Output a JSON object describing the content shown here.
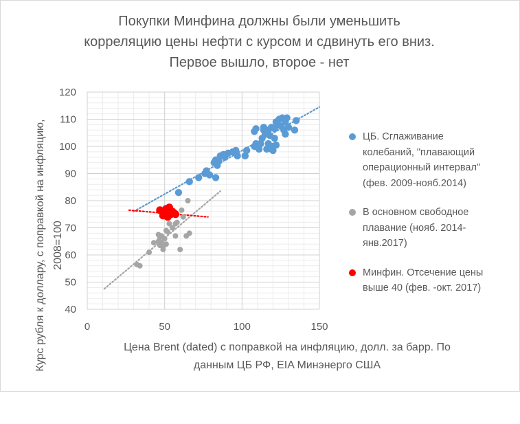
{
  "chart_data": {
    "type": "scatter",
    "title_lines": [
      "Покупки Минфина должны были уменьшить",
      "корреляцию цены нефти с курсом и сдвинуть его вниз.",
      "Первое вышло, второе - нет"
    ],
    "xlabel_lines": [
      "Цена Brent (dated) с поправкой на инфляцию, долл. за барр. По",
      "данным ЦБ РФ, EIA Минэнерго США"
    ],
    "ylabel_lines": [
      "Курс рубля к доллару, с поправкой на инфляцию,",
      "2008=100"
    ],
    "xlim": [
      0,
      150
    ],
    "ylim": [
      40,
      120
    ],
    "x_ticks": [
      "0",
      "50",
      "100",
      "150"
    ],
    "y_ticks": [
      "40",
      "50",
      "60",
      "70",
      "80",
      "90",
      "100",
      "110",
      "120"
    ],
    "grid": true,
    "legend_position": "right",
    "series": [
      {
        "name": "ЦБ. Сглаживание колебаний, \"плавающий операционный интервал\" (фев. 2009-нояб.2014)",
        "legend_lines": [
          "ЦБ. Сглаживание",
          "колебаний, \"плавающий",
          "операционный интервал\"",
          "(фев. 2009-нояб.2014)"
        ],
        "color": "#5b9bd5",
        "trendline": {
          "x": [
            30,
            150
          ],
          "y": [
            76,
            114.5
          ]
        },
        "points": [
          [
            59,
            83
          ],
          [
            66,
            87
          ],
          [
            72,
            88.5
          ],
          [
            76,
            90
          ],
          [
            77,
            91
          ],
          [
            79,
            89.5
          ],
          [
            83,
            88.5
          ],
          [
            82,
            94
          ],
          [
            83,
            95
          ],
          [
            84,
            93
          ],
          [
            85,
            94.5
          ],
          [
            86,
            96.5
          ],
          [
            88,
            97
          ],
          [
            89,
            96
          ],
          [
            91,
            97.5
          ],
          [
            94,
            98
          ],
          [
            96,
            98.5
          ],
          [
            97,
            96.5
          ],
          [
            102,
            96.5
          ],
          [
            103,
            98.5
          ],
          [
            108,
            100
          ],
          [
            109,
            101
          ],
          [
            108,
            105.5
          ],
          [
            109,
            106.5
          ],
          [
            111,
            99
          ],
          [
            112,
            101
          ],
          [
            113,
            103
          ],
          [
            114,
            106
          ],
          [
            114,
            107
          ],
          [
            115,
            104.5
          ],
          [
            116,
            99
          ],
          [
            117,
            101
          ],
          [
            117,
            106
          ],
          [
            118,
            104
          ],
          [
            119,
            107
          ],
          [
            119,
            99
          ],
          [
            120,
            100
          ],
          [
            120,
            98.5
          ],
          [
            121,
            103
          ],
          [
            121,
            106.5
          ],
          [
            122,
            109
          ],
          [
            122,
            100.5
          ],
          [
            123,
            108
          ],
          [
            124,
            110
          ],
          [
            125,
            107.5
          ],
          [
            126,
            110.5
          ],
          [
            127,
            106
          ],
          [
            128,
            109
          ],
          [
            128,
            104.5
          ],
          [
            129,
            110.5
          ],
          [
            130,
            107
          ],
          [
            134,
            106
          ],
          [
            135,
            109.5
          ]
        ]
      },
      {
        "name": "В основном свободное плавание (нояб. 2014-янв.2017)",
        "legend_lines": [
          "В основном свободное",
          "плавание (нояб. 2014-",
          "янв.2017)"
        ],
        "color": "#a5a5a5",
        "trendline": {
          "x": [
            11,
            86
          ],
          "y": [
            47.5,
            83.5
          ]
        },
        "points": [
          [
            32,
            56.5
          ],
          [
            34,
            56
          ],
          [
            40,
            61
          ],
          [
            43,
            64.5
          ],
          [
            46,
            65
          ],
          [
            46,
            67.5
          ],
          [
            47,
            66.5
          ],
          [
            47,
            63.5
          ],
          [
            48,
            64.5
          ],
          [
            48,
            67
          ],
          [
            49,
            63
          ],
          [
            49,
            62
          ],
          [
            50,
            66
          ],
          [
            51,
            69
          ],
          [
            51,
            64
          ],
          [
            52,
            68.5
          ],
          [
            53,
            71.5
          ],
          [
            53,
            76
          ],
          [
            55,
            70
          ],
          [
            57,
            71.5
          ],
          [
            57,
            67
          ],
          [
            58,
            72
          ],
          [
            60,
            62
          ],
          [
            61,
            76.5
          ],
          [
            62,
            74
          ],
          [
            64,
            67
          ],
          [
            65,
            80
          ],
          [
            66,
            68
          ]
        ]
      },
      {
        "name": "Минфин. Отсечение цены выше 40 (фев. -окт. 2017)",
        "legend_lines": [
          "Минфин. Отсечение цены",
          "выше 40 (фев. -окт. 2017)"
        ],
        "color": "#ff0000",
        "trendline": {
          "x": [
            27,
            78
          ],
          "y": [
            76.5,
            74
          ]
        },
        "points": [
          [
            47,
            76.5
          ],
          [
            49,
            74.5
          ],
          [
            50,
            75.5
          ],
          [
            51,
            76
          ],
          [
            51,
            77
          ],
          [
            52,
            74
          ],
          [
            53,
            77.5
          ],
          [
            54,
            75
          ],
          [
            55,
            76
          ],
          [
            56,
            75.5
          ],
          [
            57,
            75
          ]
        ]
      }
    ]
  }
}
